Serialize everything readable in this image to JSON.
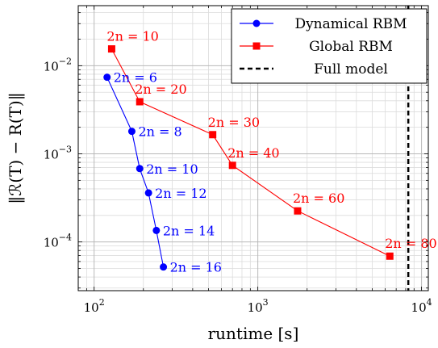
{
  "chart_data": {
    "type": "line",
    "xscale": "log",
    "yscale": "log",
    "xlim": [
      80,
      11000
    ],
    "ylim": [
      2.8e-05,
      0.048
    ],
    "xlabel": "runtime [s]",
    "ylabel": "‖ℛ(T) − R(T)‖",
    "grid": true,
    "legend_position": "top-right",
    "x_ticks": [
      {
        "value": 100,
        "base": "10",
        "exp": "2"
      },
      {
        "value": 1000,
        "base": "10",
        "exp": "3"
      },
      {
        "value": 10000,
        "base": "10",
        "exp": "4"
      }
    ],
    "y_ticks": [
      {
        "value": 0.0001,
        "base": "10",
        "exp": "−4"
      },
      {
        "value": 0.001,
        "base": "10",
        "exp": "−3"
      },
      {
        "value": 0.01,
        "base": "10",
        "exp": "−2"
      }
    ],
    "series": [
      {
        "name": "Dynamical RBM",
        "color": "#0000ff",
        "marker": "circle",
        "x": [
          120,
          170,
          190,
          215,
          240,
          265
        ],
        "y": [
          0.0074,
          0.0018,
          0.00068,
          0.00036,
          0.000135,
          5.2e-05
        ],
        "labels": [
          "2n = 6",
          "2n = 8",
          "2n = 10",
          "2n = 12",
          "2n = 14",
          "2n = 16"
        ]
      },
      {
        "name": "Global RBM",
        "color": "#ff0000",
        "marker": "square",
        "x": [
          128,
          190,
          530,
          700,
          1750,
          6400
        ],
        "y": [
          0.0155,
          0.0039,
          0.00165,
          0.00074,
          0.000225,
          6.9e-05
        ],
        "labels": [
          "2n = 10",
          "2n = 20",
          "2n = 30",
          "2n = 40",
          "2n = 60",
          "2n = 80"
        ]
      }
    ],
    "reference_lines": [
      {
        "name": "Full model",
        "orientation": "vertical",
        "x": 8300,
        "style": "dashed",
        "color": "#000000"
      }
    ]
  }
}
